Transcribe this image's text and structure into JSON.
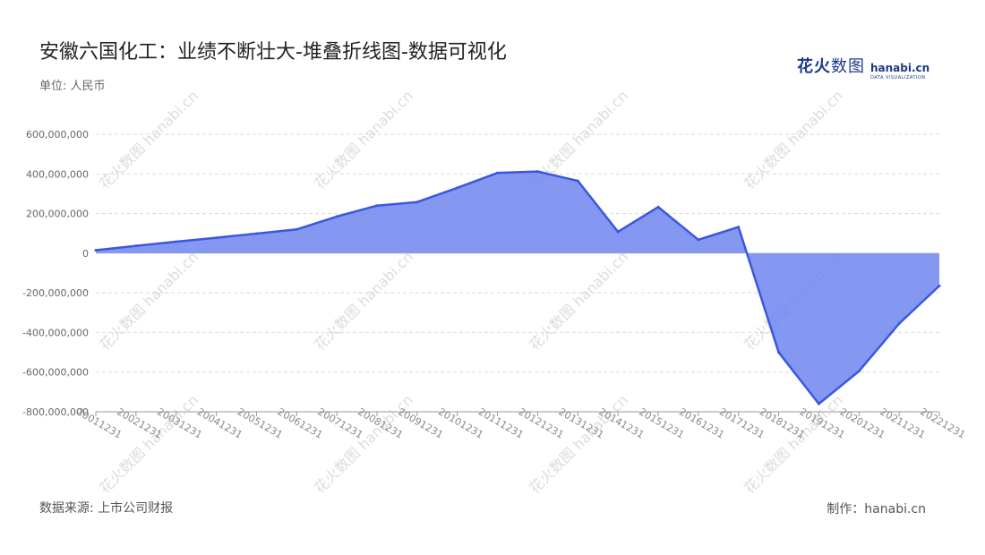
{
  "title": "安徽六国化工：业绩不断壮大-堆叠折线图-数据可视化",
  "unit": "单位: 人民币",
  "logo": {
    "cn_bold": "花火",
    "cn_light": "数图",
    "en": "hanabi.cn",
    "en_sub": "DATA VISUALIZATION"
  },
  "watermark": "花火数图 hanabi.cn",
  "source": "数据来源: 上市公司财报",
  "maker": "制作：hanabi.cn",
  "colors": {
    "area": "#6f85ee",
    "line": "#3b57e0",
    "grid": "#d9d9d9",
    "axis_text": "#666666",
    "tick_label": "#888888"
  },
  "chart_data": {
    "type": "area",
    "x": [
      "20011231",
      "20021231",
      "20031231",
      "20041231",
      "20051231",
      "20061231",
      "20071231",
      "20081231",
      "20091231",
      "20101231",
      "20111231",
      "20121231",
      "20131231",
      "20141231",
      "20151231",
      "20161231",
      "20171231",
      "20181231",
      "20191231",
      "20201231",
      "20211231",
      "20221231"
    ],
    "series": [
      {
        "values": [
          15000000,
          37000000,
          58000000,
          78000000,
          99000000,
          120000000,
          185000000,
          240000000,
          258000000,
          330000000,
          405000000,
          412000000,
          365000000,
          108000000,
          233000000,
          68000000,
          132000000,
          -500000000,
          -760000000,
          -595000000,
          -355000000,
          -165000000
        ]
      }
    ],
    "y_ticks": [
      "600,000,000",
      "400,000,000",
      "200,000,000",
      "0",
      "-200,000,000",
      "-400,000,000",
      "-600,000,000",
      "-800,000,000"
    ],
    "ylim": [
      -800000000,
      600000000
    ],
    "grid": true,
    "xlabel": "",
    "ylabel": ""
  }
}
